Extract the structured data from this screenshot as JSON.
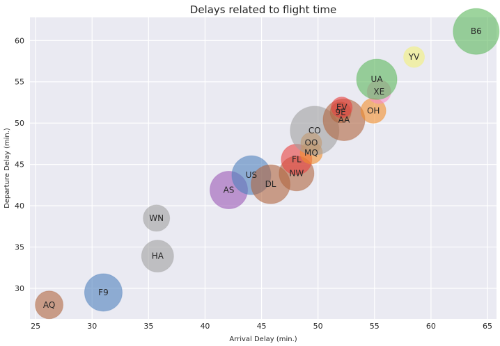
{
  "chart_data": {
    "type": "scatter",
    "title": "Delays related to flight time",
    "xlabel": "Arrival Delay (min.)",
    "ylabel": "Departure Delay (min.)",
    "xlim": [
      24.5,
      65.8
    ],
    "ylim": [
      26.3,
      62.8
    ],
    "xticks": [
      25,
      30,
      35,
      40,
      45,
      50,
      55,
      60,
      65
    ],
    "yticks": [
      30,
      35,
      40,
      45,
      50,
      55,
      60
    ],
    "grid": true,
    "background": "#eaeaf2",
    "points": [
      {
        "label": "AQ",
        "x": 26.2,
        "y": 28.0,
        "size": 20,
        "color": "#b0653f"
      },
      {
        "label": "F9",
        "x": 31.0,
        "y": 29.5,
        "size": 27,
        "color": "#4f81bd"
      },
      {
        "label": "HA",
        "x": 35.8,
        "y": 33.9,
        "size": 23,
        "color": "#a0a0a0"
      },
      {
        "label": "WN",
        "x": 35.7,
        "y": 38.5,
        "size": 19,
        "color": "#a0a0a0"
      },
      {
        "label": "AS",
        "x": 42.1,
        "y": 41.9,
        "size": 27,
        "color": "#9b59b6"
      },
      {
        "label": "US",
        "x": 44.1,
        "y": 43.7,
        "size": 28,
        "color": "#4f81bd"
      },
      {
        "label": "DL",
        "x": 45.8,
        "y": 42.6,
        "size": 28,
        "color": "#b0653f"
      },
      {
        "label": "NW",
        "x": 48.1,
        "y": 43.9,
        "size": 25,
        "color": "#b0653f"
      },
      {
        "label": "FL",
        "x": 48.1,
        "y": 45.6,
        "size": 22,
        "color": "#e8413f"
      },
      {
        "label": "MQ",
        "x": 49.4,
        "y": 46.4,
        "size": 16,
        "color": "#f28e2b"
      },
      {
        "label": "OO",
        "x": 49.4,
        "y": 47.6,
        "size": 15,
        "color": "#f28e2b"
      },
      {
        "label": "CO",
        "x": 49.7,
        "y": 49.1,
        "size": 35,
        "color": "#a0a0a0"
      },
      {
        "label": "AA",
        "x": 52.3,
        "y": 50.4,
        "size": 30,
        "color": "#b0653f"
      },
      {
        "label": "9E",
        "x": 52.0,
        "y": 51.3,
        "size": 15,
        "color": "#b0653f"
      },
      {
        "label": "EV",
        "x": 52.1,
        "y": 51.9,
        "size": 15,
        "color": "#e8413f"
      },
      {
        "label": "OH",
        "x": 54.9,
        "y": 51.5,
        "size": 18,
        "color": "#f28e2b"
      },
      {
        "label": "XE",
        "x": 55.4,
        "y": 53.8,
        "size": 17,
        "color": "#f58ec8"
      },
      {
        "label": "UA",
        "x": 55.2,
        "y": 55.3,
        "size": 29,
        "color": "#5cb85c"
      },
      {
        "label": "YV",
        "x": 58.5,
        "y": 58.0,
        "size": 15,
        "color": "#f2f07a"
      },
      {
        "label": "B6",
        "x": 64.0,
        "y": 61.1,
        "size": 33,
        "color": "#5cb85c"
      }
    ]
  }
}
